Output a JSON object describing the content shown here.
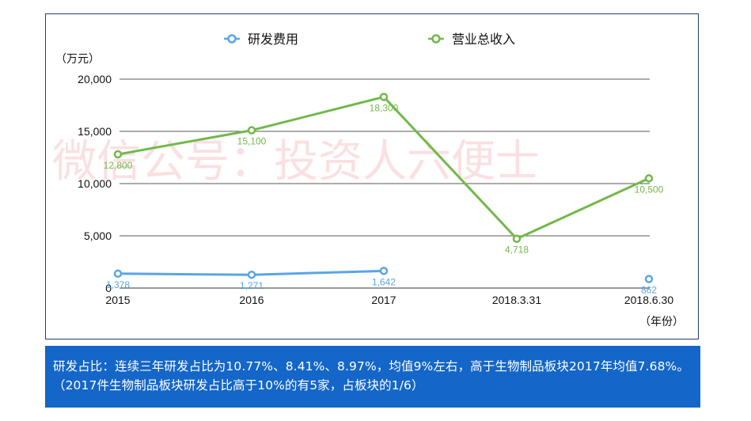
{
  "watermark": "微信公号：投资人六便士",
  "note": "研发占比：连续三年研发占比为10.77%、8.41%、8.97%，均值9%左右，高于生物制品板块2017年均值7.68%。（2017件生物制品板块研发占比高于10%的有5家，占板块的1/6）",
  "chart_data": {
    "type": "line",
    "title": "",
    "ylabel": "（万元）",
    "xlabel": "（年份）",
    "categories": [
      "2015",
      "2016",
      "2017",
      "2018.3.31",
      "2018.6.30"
    ],
    "ylim": [
      0,
      20000
    ],
    "yticks": [
      "0",
      "5,000",
      "10,000",
      "15,000",
      "20,000"
    ],
    "ytick_values": [
      0,
      5000,
      10000,
      15000,
      20000
    ],
    "grid": true,
    "legend_position": "top",
    "series": [
      {
        "name": "研发费用",
        "color": "#5aa5e6",
        "values": [
          1378,
          1271,
          1642,
          null,
          862
        ],
        "labels": [
          "1,378",
          "1,271",
          "1,642",
          "",
          "862"
        ]
      },
      {
        "name": "营业总收入",
        "color": "#72b84a",
        "values": [
          12800,
          15100,
          18300,
          4718,
          10500
        ],
        "labels": [
          "12,800",
          "15,100",
          "18,300",
          "4,718",
          "10,500"
        ]
      }
    ]
  }
}
